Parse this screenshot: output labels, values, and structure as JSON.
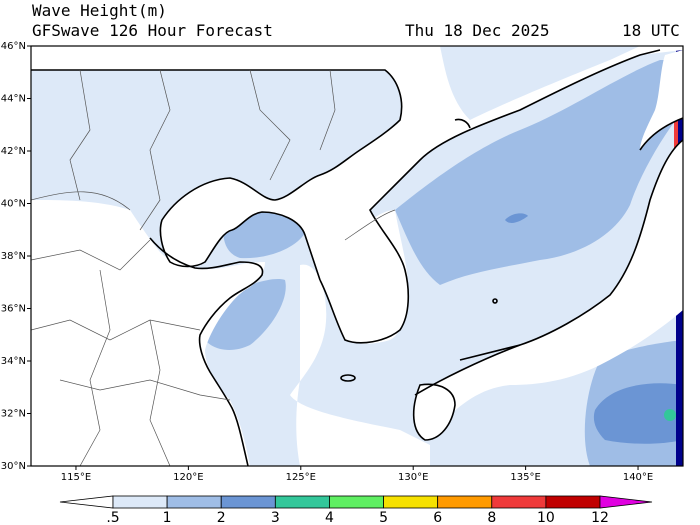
{
  "header": {
    "title": "Wave Height(m)",
    "model": "GFSwave 126 Hour Forecast",
    "date": "Thu 18 Dec 2025",
    "hour": "18 UTC"
  },
  "map": {
    "lon_range": [
      113,
      142
    ],
    "lat_range": [
      30,
      46
    ],
    "lon_ticks": [
      "115°E",
      "120°E",
      "125°E",
      "130°E",
      "135°E",
      "140°E"
    ],
    "lat_ticks": [
      "30°N",
      "32°N",
      "34°N",
      "36°N",
      "38°N",
      "40°N",
      "42°N",
      "44°N",
      "46°N"
    ]
  },
  "colorbar": {
    "labels": [
      ".5",
      "1",
      "2",
      "3",
      "4",
      "5",
      "6",
      "8",
      "10",
      "12"
    ],
    "colors": [
      "#ffffff",
      "#dde9f8",
      "#9fbde6",
      "#6b95d4",
      "#33c79a",
      "#5fef62",
      "#f6e100",
      "#ff9a00",
      "#ef3a3a",
      "#c00000",
      "#e000e0"
    ]
  },
  "colors": {
    "land": "#ffffff",
    "wave_low": "#dde9f8",
    "wave_mid": "#9fbde6",
    "wave_high": "#6b95d4",
    "wave_green": "#33c79a"
  }
}
